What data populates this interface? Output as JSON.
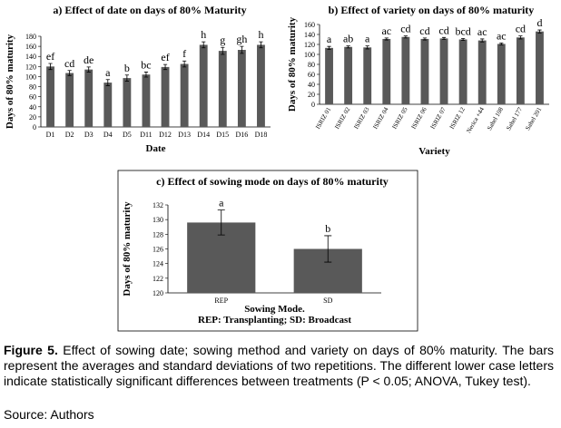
{
  "chart_data": [
    {
      "type": "bar",
      "title": "a) Effect of date on days of 80% Maturity",
      "ylabel": "Days of 80% maturity",
      "xlabel": "Date",
      "categories": [
        "D1",
        "D2",
        "D3",
        "D4",
        "D5",
        "D11",
        "D12",
        "D13",
        "D14",
        "D15",
        "D16",
        "D18"
      ],
      "values": [
        120,
        107,
        114,
        88,
        97,
        104,
        119,
        125,
        163,
        151,
        153,
        163
      ],
      "errors": [
        6,
        5,
        5,
        6,
        6,
        5,
        5,
        6,
        6,
        7,
        7,
        6
      ],
      "letters": [
        "ef",
        "cd",
        "de",
        "a",
        "b",
        "bc",
        "ef",
        "f",
        "h",
        "g",
        "gh",
        "h"
      ],
      "ylim": [
        0,
        180
      ],
      "yticks": [
        0,
        20,
        40,
        60,
        80,
        100,
        120,
        140,
        160,
        180
      ],
      "color": "#595959",
      "frame": false
    },
    {
      "type": "bar",
      "title": "b) Effect of variety on days of 80% maturity",
      "ylabel": "Days of 80% maturity",
      "xlabel": "Variety",
      "categories": [
        "ISRIZ 01",
        "ISRIZ 02",
        "ISRIZ 03",
        "ISRIZ 04",
        "ISRIZ 05",
        "ISRIZ 06",
        "ISRIZ 07",
        "ISRIZ 12",
        "Nerica +44",
        "Sahel 108",
        "Sahel 177",
        "Sahel 201"
      ],
      "values": [
        113,
        115,
        114,
        131,
        135,
        131,
        132,
        130,
        128,
        121,
        134,
        146
      ],
      "errors": [
        3,
        2,
        3,
        2,
        2,
        2,
        2,
        2,
        3,
        2,
        3,
        3
      ],
      "letters": [
        "a",
        "ab",
        "a",
        "ac",
        "cd",
        "cd",
        "cd",
        "bcd",
        "ac",
        "ac",
        "cd",
        "d"
      ],
      "ylim": [
        0,
        160
      ],
      "yticks": [
        0,
        20,
        40,
        60,
        80,
        100,
        120,
        140,
        160
      ],
      "color": "#595959",
      "frame": false
    },
    {
      "type": "bar",
      "title": "c) Effect of sowing mode on days of 80% maturity",
      "ylabel": "Days of 80% maturity",
      "xlabel": "Sowing Mode.",
      "subtitle": "REP: Transplanting; SD: Broadcast",
      "categories": [
        "REP",
        "SD"
      ],
      "values": [
        129.6,
        126.0
      ],
      "errors": [
        1.7,
        1.8
      ],
      "letters": [
        "a",
        "b"
      ],
      "ylim": [
        120,
        132
      ],
      "yticks": [
        120,
        122,
        124,
        126,
        128,
        130,
        132
      ],
      "color": "#595959",
      "frame": true
    }
  ],
  "caption": {
    "label": "Figure 5.",
    "text": "Effect of sowing date; sowing method and variety on days of 80% maturity. The bars represent the averages and standard deviations of two repetitions. The different lower case letters indicate statistically significant differences between treatments (P < 0.05; ANOVA, Tukey test).",
    "source": "Source: Authors"
  }
}
